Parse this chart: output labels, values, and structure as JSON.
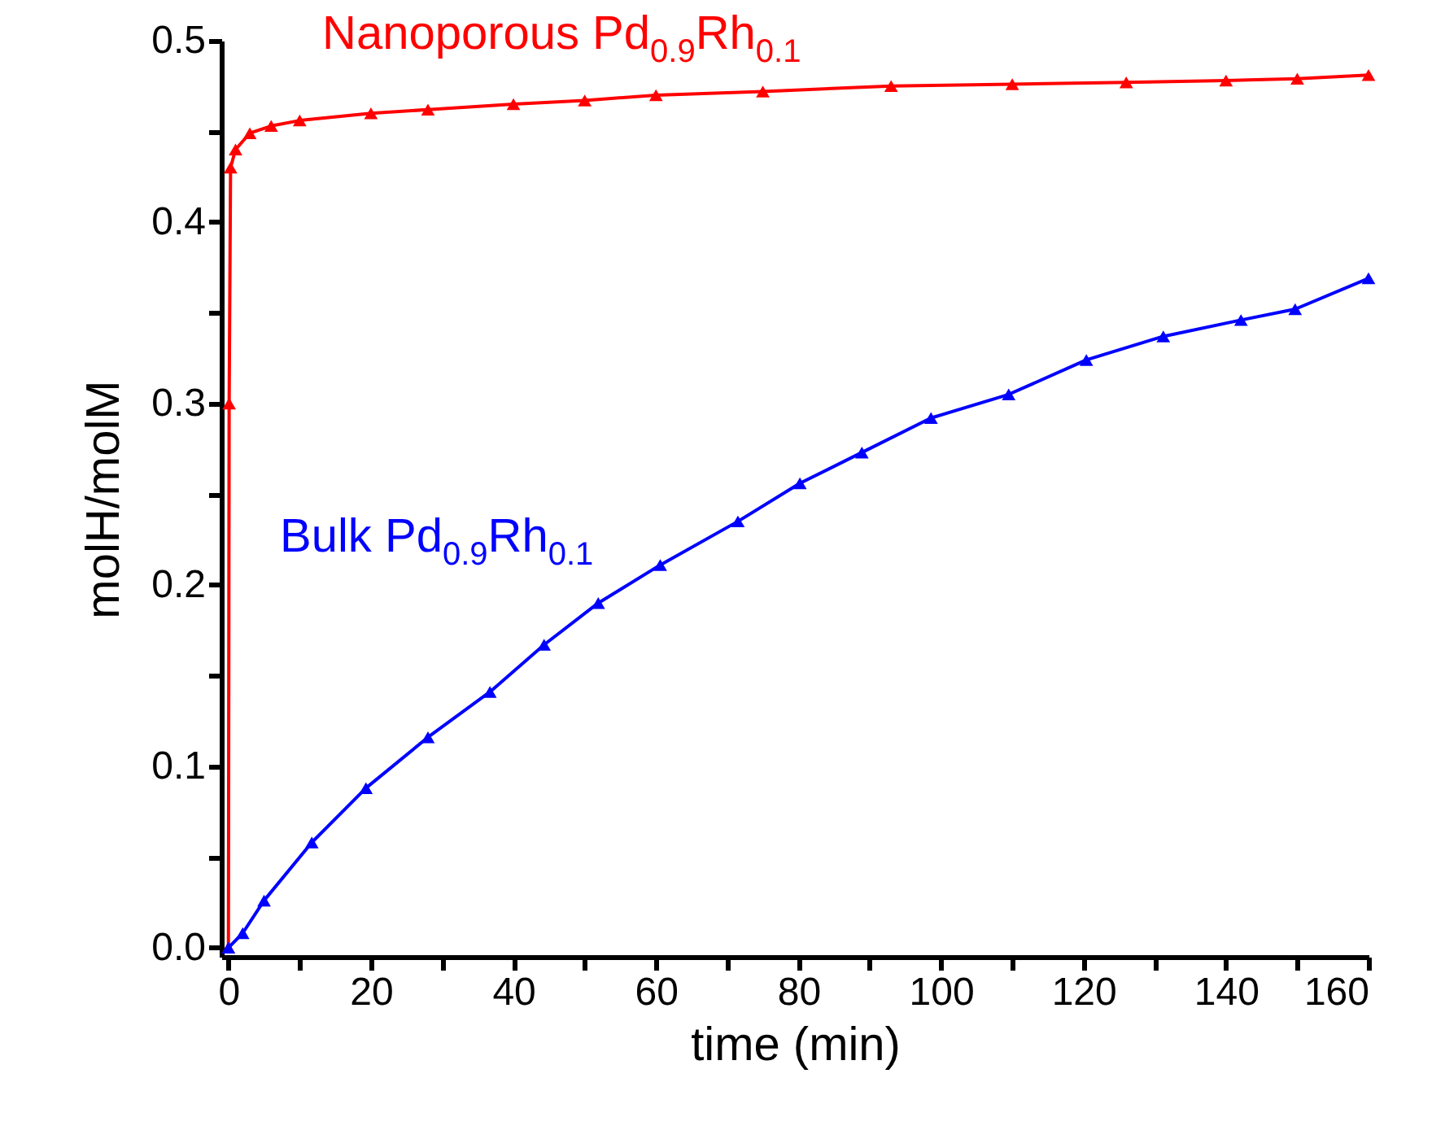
{
  "chart_data": {
    "type": "line",
    "xlabel": "time (min)",
    "ylabel": "molH/molM",
    "xlim": [
      -1,
      160
    ],
    "ylim": [
      -0.005,
      0.5
    ],
    "xticks": [
      0,
      {
        "value": 10,
        "label": null
      },
      20,
      {
        "value": 30,
        "label": null
      },
      40,
      {
        "value": 50,
        "label": null
      },
      60,
      {
        "value": 70,
        "label": null
      },
      80,
      {
        "value": 90,
        "label": null
      },
      100,
      {
        "value": 110,
        "label": null
      },
      120,
      {
        "value": 130,
        "label": null
      },
      140,
      {
        "value": 150,
        "label": null
      },
      160
    ],
    "yticks": [
      {
        "value": 0,
        "label": "0.0"
      },
      {
        "value": 0.05,
        "label": null
      },
      0.1,
      {
        "value": 0.15,
        "label": null
      },
      0.2,
      {
        "value": 0.25,
        "label": null
      },
      0.3,
      {
        "value": 0.35,
        "label": null
      },
      0.4,
      {
        "value": 0.45,
        "label": null
      },
      0.5
    ],
    "grid": false,
    "marker": "triangle",
    "line_style": "solid",
    "series": [
      {
        "name": "Nanoporous Pd$_{0.9}$Rh$_{0.1}$",
        "color": "#ff0000",
        "x": [
          0,
          0.1,
          0.3,
          1,
          3,
          6,
          10,
          20,
          28,
          40,
          50,
          60,
          75,
          93,
          110,
          126,
          140,
          150,
          160
        ],
        "values": [
          0,
          0.3,
          0.43,
          0.44,
          0.449,
          0.453,
          0.456,
          0.46,
          0.462,
          0.465,
          0.467,
          0.47,
          0.472,
          0.475,
          0.476,
          0.477,
          0.478,
          0.479,
          0.481
        ]
      },
      {
        "name": "Bulk Pd$_{0.9}$Rh$_{0.1}$",
        "color": "#0000ff",
        "x": [
          0,
          2,
          5,
          11.7,
          19.3,
          28,
          36.7,
          44.3,
          51.9,
          60.6,
          71.5,
          80.2,
          88.9,
          98.6,
          109.5,
          120.4,
          131.2,
          142.1,
          149.7,
          160
        ],
        "values": [
          0,
          0.008,
          0.026,
          0.058,
          0.088,
          0.116,
          0.141,
          0.167,
          0.19,
          0.211,
          0.235,
          0.256,
          0.273,
          0.292,
          0.305,
          0.324,
          0.337,
          0.346,
          0.352,
          0.369
        ]
      }
    ]
  }
}
